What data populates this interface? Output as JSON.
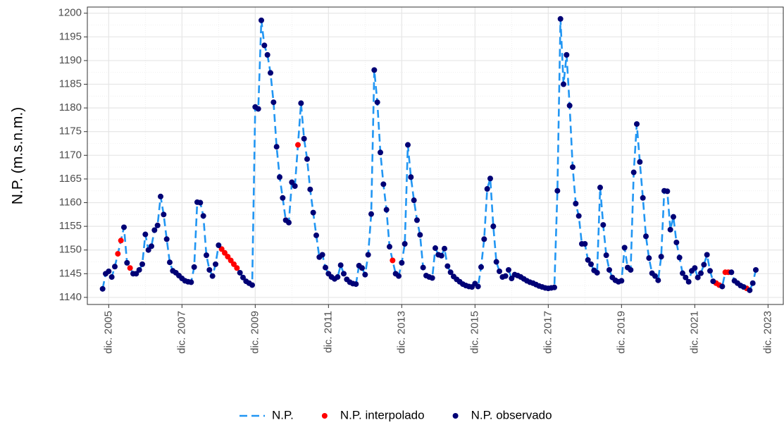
{
  "chart_data": {
    "type": "line",
    "y_label": "N.P. (m.s.n.m.)",
    "xlim": [
      "2005-05",
      "2024-05"
    ],
    "ylim": [
      1138.5,
      1201.3
    ],
    "xticks": [
      {
        "value": "2005-12",
        "label": "dic. 2005"
      },
      {
        "value": "2007-12",
        "label": "dic. 2007"
      },
      {
        "value": "2009-12",
        "label": "dic. 2009"
      },
      {
        "value": "2011-12",
        "label": "dic. 2011"
      },
      {
        "value": "2013-12",
        "label": "dic. 2013"
      },
      {
        "value": "2015-12",
        "label": "dic. 2015"
      },
      {
        "value": "2017-12",
        "label": "dic. 2017"
      },
      {
        "value": "2019-12",
        "label": "dic. 2019"
      },
      {
        "value": "2021-12",
        "label": "dic. 2021"
      },
      {
        "value": "2023-12",
        "label": "dic. 2023"
      }
    ],
    "yticks": [
      1140,
      1145,
      1150,
      1155,
      1160,
      1165,
      1170,
      1175,
      1180,
      1185,
      1190,
      1195,
      1200
    ],
    "grid": true,
    "legend": "bottom",
    "x": [
      "2005-10",
      "2005-11",
      "2005-12",
      "2006-01",
      "2006-02",
      "2006-03",
      "2006-04",
      "2006-05",
      "2006-06",
      "2006-07",
      "2006-08",
      "2006-09",
      "2006-10",
      "2006-11",
      "2006-12",
      "2007-01",
      "2007-02",
      "2007-03",
      "2007-04",
      "2007-05",
      "2007-06",
      "2007-07",
      "2007-08",
      "2007-09",
      "2007-10",
      "2007-11",
      "2007-12",
      "2008-01",
      "2008-02",
      "2008-03",
      "2008-04",
      "2008-05",
      "2008-06",
      "2008-07",
      "2008-08",
      "2008-09",
      "2008-10",
      "2008-11",
      "2008-12",
      "2009-01",
      "2009-02",
      "2009-03",
      "2009-04",
      "2009-05",
      "2009-06",
      "2009-07",
      "2009-08",
      "2009-09",
      "2009-10",
      "2009-11",
      "2009-12",
      "2010-01",
      "2010-02",
      "2010-03",
      "2010-04",
      "2010-05",
      "2010-06",
      "2010-07",
      "2010-08",
      "2010-09",
      "2010-10",
      "2010-11",
      "2010-12",
      "2011-01",
      "2011-02",
      "2011-03",
      "2011-04",
      "2011-05",
      "2011-06",
      "2011-07",
      "2011-08",
      "2011-09",
      "2011-10",
      "2011-11",
      "2011-12",
      "2012-01",
      "2012-02",
      "2012-03",
      "2012-04",
      "2012-05",
      "2012-06",
      "2012-07",
      "2012-08",
      "2012-09",
      "2012-10",
      "2012-11",
      "2012-12",
      "2013-01",
      "2013-02",
      "2013-03",
      "2013-04",
      "2013-05",
      "2013-06",
      "2013-07",
      "2013-08",
      "2013-09",
      "2013-10",
      "2013-11",
      "2013-12",
      "2014-01",
      "2014-02",
      "2014-03",
      "2014-04",
      "2014-05",
      "2014-06",
      "2014-07",
      "2014-08",
      "2014-09",
      "2014-10",
      "2014-11",
      "2014-12",
      "2015-01",
      "2015-02",
      "2015-03",
      "2015-04",
      "2015-05",
      "2015-06",
      "2015-07",
      "2015-08",
      "2015-09",
      "2015-10",
      "2015-11",
      "2015-12",
      "2016-01",
      "2016-02",
      "2016-03",
      "2016-04",
      "2016-05",
      "2016-06",
      "2016-07",
      "2016-08",
      "2016-09",
      "2016-10",
      "2016-11",
      "2016-12",
      "2017-01",
      "2017-02",
      "2017-03",
      "2017-04",
      "2017-05",
      "2017-06",
      "2017-07",
      "2017-08",
      "2017-09",
      "2017-10",
      "2017-11",
      "2017-12",
      "2018-01",
      "2018-02",
      "2018-03",
      "2018-04",
      "2018-05",
      "2018-06",
      "2018-07",
      "2018-08",
      "2018-09",
      "2018-10",
      "2018-11",
      "2018-12",
      "2019-01",
      "2019-02",
      "2019-03",
      "2019-04",
      "2019-05",
      "2019-06",
      "2019-07",
      "2019-08",
      "2019-09",
      "2019-10",
      "2019-11",
      "2019-12",
      "2020-01",
      "2020-02",
      "2020-03",
      "2020-04",
      "2020-05",
      "2020-06",
      "2020-07",
      "2020-08",
      "2020-09",
      "2020-10",
      "2020-11",
      "2020-12",
      "2021-01",
      "2021-02",
      "2021-03",
      "2021-04",
      "2021-05",
      "2021-06",
      "2021-07",
      "2021-08",
      "2021-09",
      "2021-10",
      "2021-11",
      "2021-12",
      "2022-01",
      "2022-02",
      "2022-03",
      "2022-04",
      "2022-05",
      "2022-06",
      "2022-07",
      "2022-08",
      "2022-09",
      "2022-10",
      "2022-11",
      "2022-12",
      "2023-01",
      "2023-02",
      "2023-03",
      "2023-04",
      "2023-05",
      "2023-06",
      "2023-07",
      "2023-08"
    ],
    "series": [
      {
        "name": "N.P.",
        "type": "line",
        "color": "#2196f3",
        "values": [
          1141.8,
          1145,
          1145.5,
          1144.3,
          1146.5,
          1149.2,
          1152,
          1154.8,
          1147.3,
          1146.2,
          1145,
          1145,
          1145.8,
          1147,
          1153.3,
          1150,
          1150.8,
          1154.2,
          1155.2,
          1161.3,
          1157.5,
          1152.3,
          1147.4,
          1145.6,
          1145.2,
          1144.6,
          1144,
          1143.5,
          1143.3,
          1143.2,
          1146.4,
          1160.1,
          1160,
          1157.2,
          1148.9,
          1145.8,
          1144.5,
          1147,
          1151,
          1150.2,
          1149.4,
          1148.6,
          1147.8,
          1147,
          1146.2,
          1145.2,
          1144.2,
          1143.4,
          1143,
          1142.6,
          1180.2,
          1179.8,
          1198.5,
          1193.2,
          1191.2,
          1187.4,
          1181.2,
          1171.8,
          1165.4,
          1161,
          1156.3,
          1155.8,
          1164.3,
          1163.5,
          1172.2,
          1181,
          1173.5,
          1169.2,
          1162.8,
          1157.9,
          1153.1,
          1148.5,
          1149,
          1146.3,
          1145,
          1144.3,
          1143.9,
          1144.3,
          1146.8,
          1145,
          1143.8,
          1143.2,
          1142.9,
          1142.8,
          1146.7,
          1146.2,
          1144.8,
          1149,
          1157.6,
          1188,
          1181.2,
          1170.6,
          1163.9,
          1158.5,
          1150.7,
          1147.8,
          1145,
          1144.5,
          1147.3,
          1151.3,
          1172.2,
          1165.4,
          1160.5,
          1156.3,
          1153.2,
          1146.3,
          1144.6,
          1144.3,
          1144.1,
          1150.4,
          1149,
          1148.8,
          1150.3,
          1146.6,
          1145.3,
          1144.4,
          1143.8,
          1143.3,
          1142.8,
          1142.5,
          1142.3,
          1142.2,
          1142.9,
          1142.3,
          1146.4,
          1152.3,
          1162.9,
          1165.1,
          1155,
          1147.5,
          1145.5,
          1144.3,
          1144.5,
          1145.8,
          1144,
          1144.8,
          1144.6,
          1144.3,
          1143.9,
          1143.5,
          1143.2,
          1143,
          1142.7,
          1142.4,
          1142.2,
          1142,
          1141.9,
          1142,
          1142.1,
          1162.5,
          1198.8,
          1185,
          1191.2,
          1180.5,
          1167.5,
          1159.8,
          1157.2,
          1151.3,
          1151.3,
          1147.9,
          1147,
          1145.7,
          1145.2,
          1163.2,
          1155.3,
          1148.9,
          1145.8,
          1144.2,
          1143.6,
          1143.3,
          1143.5,
          1150.5,
          1146.3,
          1145.8,
          1166.4,
          1176.6,
          1168.6,
          1161,
          1152.9,
          1148.3,
          1145.1,
          1144.5,
          1143.6,
          1148.6,
          1162.5,
          1162.4,
          1154.3,
          1157,
          1151.6,
          1148.4,
          1145.1,
          1144.2,
          1143.3,
          1145.6,
          1146.2,
          1144.2,
          1145.1,
          1146.9,
          1149,
          1145.6,
          1143.4,
          1143,
          1142.6,
          1142.3,
          1145.3,
          1145.3,
          1145.3,
          1143.5,
          1143,
          1142.5,
          1142.2,
          1141.9,
          1141.5,
          1143,
          1145.8
        ]
      },
      {
        "name": "N.P. interpolado",
        "type": "scatter",
        "color": "#ff0000",
        "values": [
          null,
          null,
          null,
          null,
          null,
          1149.2,
          1152,
          null,
          null,
          1146.2,
          null,
          null,
          null,
          null,
          null,
          null,
          null,
          null,
          null,
          null,
          null,
          null,
          null,
          null,
          null,
          null,
          null,
          null,
          null,
          null,
          null,
          null,
          null,
          null,
          null,
          null,
          null,
          null,
          null,
          1150.2,
          1149.4,
          1148.6,
          1147.8,
          1147,
          1146.2,
          null,
          null,
          null,
          null,
          null,
          null,
          null,
          null,
          null,
          null,
          null,
          null,
          null,
          null,
          null,
          null,
          null,
          null,
          null,
          1172.2,
          null,
          null,
          null,
          null,
          null,
          null,
          null,
          null,
          null,
          null,
          null,
          null,
          null,
          null,
          null,
          null,
          null,
          null,
          null,
          null,
          null,
          null,
          null,
          null,
          null,
          null,
          null,
          null,
          null,
          null,
          1147.8,
          null,
          null,
          null,
          null,
          null,
          null,
          null,
          null,
          null,
          null,
          null,
          null,
          null,
          null,
          null,
          null,
          null,
          null,
          null,
          null,
          null,
          null,
          null,
          null,
          null,
          null,
          null,
          null,
          null,
          null,
          null,
          null,
          null,
          null,
          null,
          null,
          null,
          null,
          null,
          null,
          null,
          null,
          null,
          null,
          null,
          null,
          null,
          null,
          null,
          null,
          null,
          null,
          null,
          null,
          null,
          null,
          null,
          null,
          null,
          null,
          null,
          null,
          null,
          null,
          null,
          null,
          null,
          null,
          null,
          null,
          null,
          null,
          null,
          null,
          null,
          null,
          null,
          null,
          null,
          null,
          null,
          null,
          null,
          null,
          null,
          null,
          null,
          null,
          null,
          null,
          null,
          null,
          null,
          null,
          null,
          null,
          null,
          null,
          null,
          null,
          null,
          null,
          null,
          null,
          null,
          1143,
          1142.6,
          null,
          1145.3,
          1145.3,
          null,
          null,
          null,
          null,
          null,
          1141.9,
          null,
          null,
          null
        ]
      },
      {
        "name": "N.P. observado",
        "type": "scatter",
        "color": "#000075",
        "values": [
          1141.8,
          1145,
          1145.5,
          1144.3,
          1146.5,
          null,
          null,
          1154.8,
          1147.3,
          null,
          1145,
          1145,
          1145.8,
          1147,
          1153.3,
          1150,
          1150.8,
          1154.2,
          1155.2,
          1161.3,
          1157.5,
          1152.3,
          1147.4,
          1145.6,
          1145.2,
          1144.6,
          1144,
          1143.5,
          1143.3,
          1143.2,
          1146.4,
          1160.1,
          1160,
          1157.2,
          1148.9,
          1145.8,
          1144.5,
          1147,
          1151,
          null,
          null,
          null,
          null,
          null,
          null,
          1145.2,
          1144.2,
          1143.4,
          1143,
          1142.6,
          1180.2,
          1179.8,
          1198.5,
          1193.2,
          1191.2,
          1187.4,
          1181.2,
          1171.8,
          1165.4,
          1161,
          1156.3,
          1155.8,
          1164.3,
          1163.5,
          null,
          1181,
          1173.5,
          1169.2,
          1162.8,
          1157.9,
          1153.1,
          1148.5,
          1149,
          1146.3,
          1145,
          1144.3,
          1143.9,
          1144.3,
          1146.8,
          1145,
          1143.8,
          1143.2,
          1142.9,
          1142.8,
          1146.7,
          1146.2,
          1144.8,
          1149,
          1157.6,
          1188,
          1181.2,
          1170.6,
          1163.9,
          1158.5,
          1150.7,
          null,
          1145,
          1144.5,
          1147.3,
          1151.3,
          1172.2,
          1165.4,
          1160.5,
          1156.3,
          1153.2,
          1146.3,
          1144.6,
          1144.3,
          1144.1,
          1150.4,
          1149,
          1148.8,
          1150.3,
          1146.6,
          1145.3,
          1144.4,
          1143.8,
          1143.3,
          1142.8,
          1142.5,
          1142.3,
          1142.2,
          1142.9,
          1142.3,
          1146.4,
          1152.3,
          1162.9,
          1165.1,
          1155,
          1147.5,
          1145.5,
          1144.3,
          1144.5,
          1145.8,
          1144,
          1144.8,
          1144.6,
          1144.3,
          1143.9,
          1143.5,
          1143.2,
          1143,
          1142.7,
          1142.4,
          1142.2,
          1142,
          1141.9,
          1142,
          1142.1,
          1162.5,
          1198.8,
          1185,
          1191.2,
          1180.5,
          1167.5,
          1159.8,
          1157.2,
          1151.3,
          1151.3,
          1147.9,
          1147,
          1145.7,
          1145.2,
          1163.2,
          1155.3,
          1148.9,
          1145.8,
          1144.2,
          1143.6,
          1143.3,
          1143.5,
          1150.5,
          1146.3,
          1145.8,
          1166.4,
          1176.6,
          1168.6,
          1161,
          1152.9,
          1148.3,
          1145.1,
          1144.5,
          1143.6,
          1148.6,
          1162.5,
          1162.4,
          1154.3,
          1157,
          1151.6,
          1148.4,
          1145.1,
          1144.2,
          1143.3,
          1145.6,
          1146.2,
          1144.2,
          1145.1,
          1146.9,
          1149,
          1145.6,
          1143.4,
          null,
          null,
          1142.3,
          null,
          null,
          1145.3,
          1143.5,
          1143,
          1142.5,
          1142.2,
          null,
          1141.5,
          1143,
          1145.8
        ]
      }
    ]
  }
}
